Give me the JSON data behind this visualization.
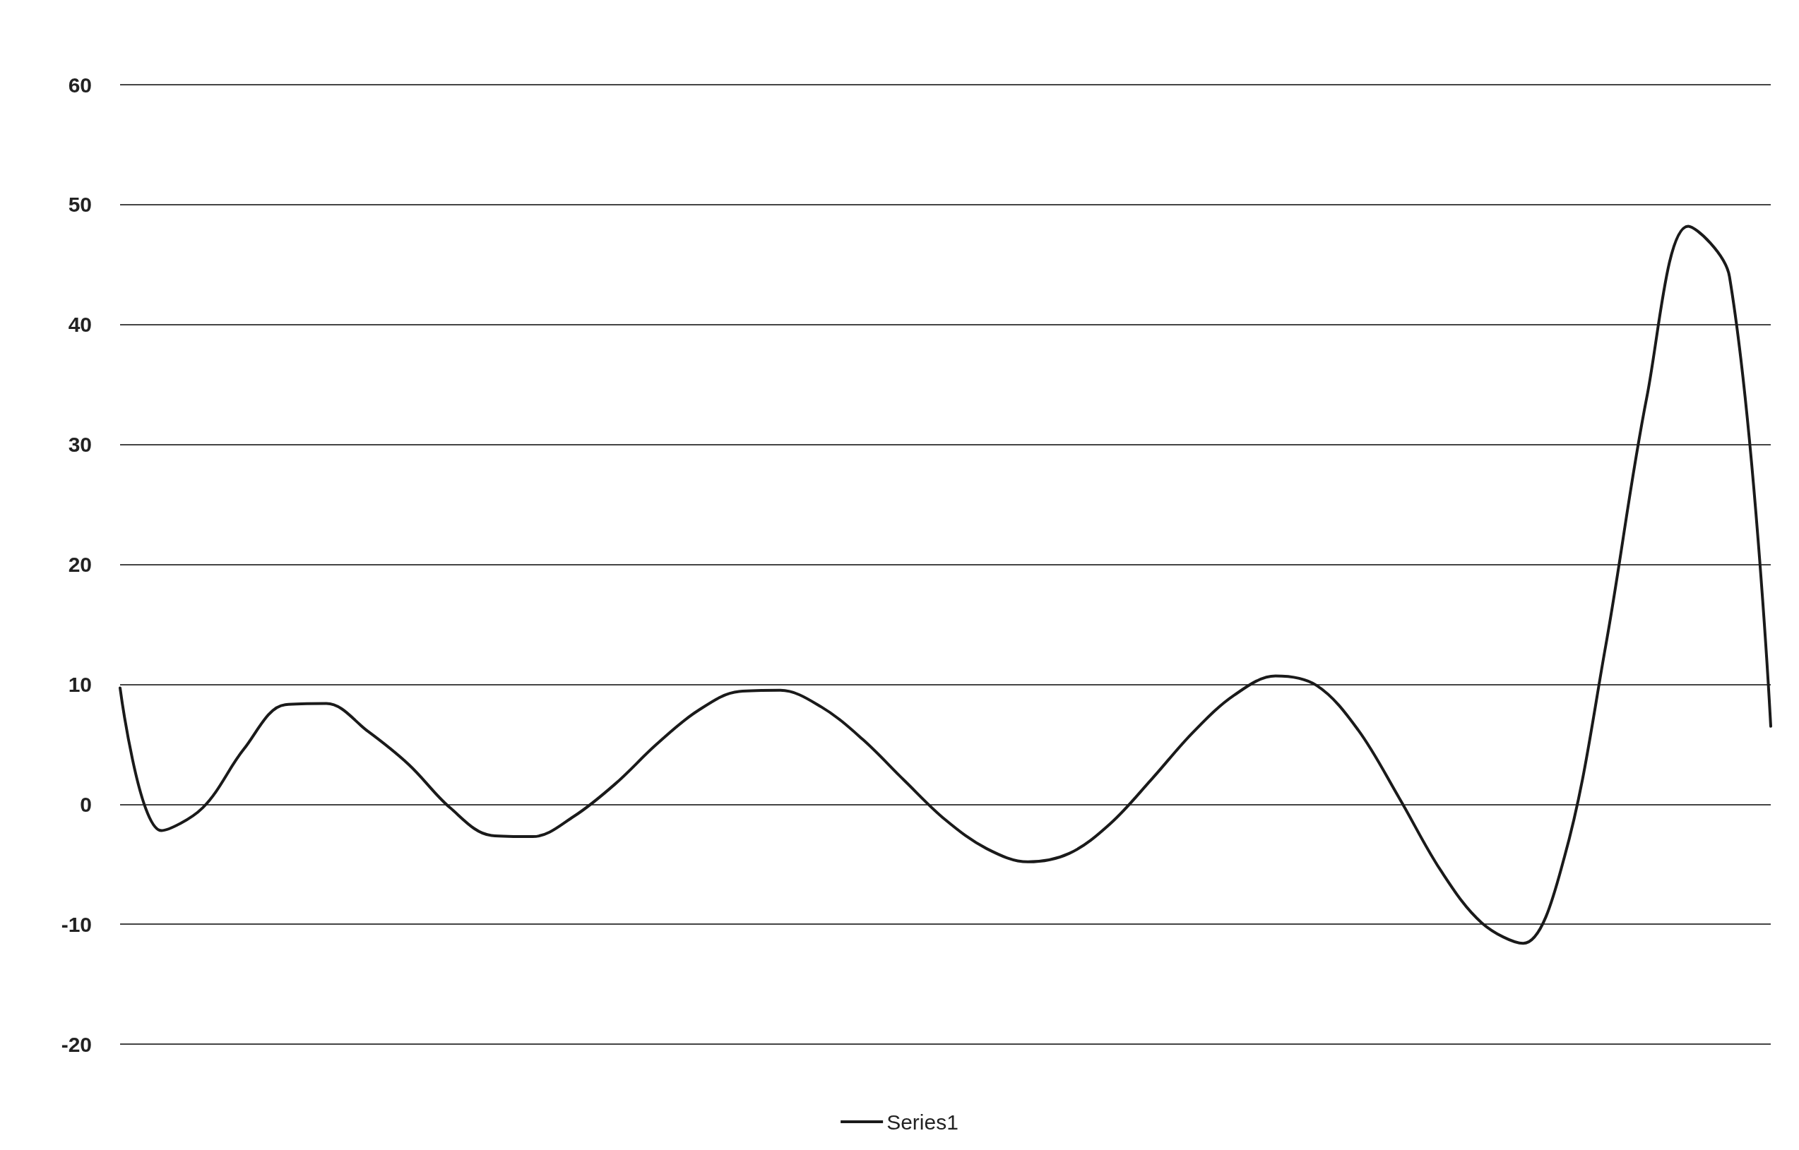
{
  "chart_data": {
    "type": "line",
    "categories": [
      null,
      null,
      null,
      null,
      null,
      null,
      null,
      null,
      null,
      null,
      null,
      null,
      null,
      null,
      null,
      null,
      null,
      null,
      null,
      null,
      null,
      null,
      null,
      null,
      null,
      null,
      null,
      null,
      null,
      null,
      null,
      null,
      null,
      null,
      null,
      null,
      null,
      null,
      null,
      null,
      null
    ],
    "series": [
      {
        "name": "Series1",
        "color": "#1a1a1a",
        "values": [
          9.7,
          -2.2,
          -0.3,
          4.6,
          8.3,
          8.4,
          6.1,
          3.3,
          -0.3,
          -2.6,
          -2.7,
          -1.0,
          1.7,
          5.0,
          7.8,
          9.4,
          9.5,
          8.1,
          5.4,
          2.0,
          -1.3,
          -3.7,
          -4.8,
          -4.1,
          -1.6,
          2.1,
          6.0,
          9.1,
          10.7,
          9.9,
          6.2,
          0.5,
          -5.5,
          -9.9,
          -11.6,
          -4.4,
          13.2,
          34.0,
          48.2,
          44.0,
          6.5
        ]
      }
    ],
    "ylim": [
      -20,
      60
    ],
    "yticks": [
      -20,
      -10,
      0,
      10,
      20,
      30,
      40,
      50,
      60
    ],
    "grid": "y",
    "legend": "bottom",
    "marker": "none",
    "line_style": "solid"
  }
}
